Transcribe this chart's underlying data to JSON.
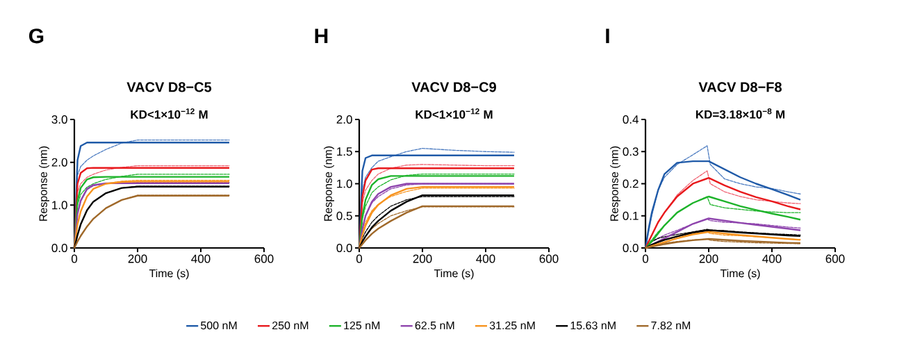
{
  "chart_data": [
    {
      "type": "line",
      "title": "VACV D8−C5",
      "subtitle": "**KD<1×10$^{−12}$ M**",
      "xlabel": "Time (s)",
      "ylabel": "Response (nm)",
      "annotations": [
        "G"
      ],
      "xlim": [
        0,
        600
      ],
      "xticks": [
        0,
        200,
        400,
        600
      ],
      "ylim": [
        0,
        3
      ],
      "yticks": [
        {
          "value": 0,
          "label": "0.0"
        },
        {
          "value": 1,
          "label": "1.0"
        },
        {
          "value": 2,
          "label": "2.0"
        },
        {
          "value": 3,
          "label": "3.0"
        }
      ],
      "series": [
        {
          "color": "#4a7ac0",
          "line_style": "dashed",
          "x": [
            0,
            10,
            20,
            40,
            60,
            100,
            150,
            200,
            300,
            400,
            490
          ],
          "values": [
            0,
            1.7,
            1.9,
            2.05,
            2.15,
            2.3,
            2.45,
            2.52,
            2.52,
            2.52,
            2.52
          ]
        },
        {
          "color": "#f06070",
          "line_style": "dashed",
          "x": [
            0,
            10,
            20,
            40,
            60,
            100,
            150,
            200,
            300,
            400,
            490
          ],
          "values": [
            0,
            1.3,
            1.5,
            1.65,
            1.72,
            1.82,
            1.88,
            1.92,
            1.92,
            1.92,
            1.92
          ]
        },
        {
          "color": "#1db32a",
          "line_style": "dashed",
          "x": [
            0,
            10,
            20,
            40,
            60,
            100,
            150,
            200,
            300,
            400,
            490
          ],
          "values": [
            0,
            1.0,
            1.25,
            1.42,
            1.5,
            1.6,
            1.67,
            1.72,
            1.72,
            1.72,
            1.72
          ]
        },
        {
          "color": "#8e44ad",
          "line_style": "dashed",
          "x": [
            0,
            10,
            20,
            40,
            60,
            100,
            150,
            200,
            300,
            400,
            490
          ],
          "values": [
            0,
            0.8,
            1.1,
            1.36,
            1.45,
            1.5,
            1.52,
            1.53,
            1.53,
            1.53,
            1.53
          ]
        },
        {
          "color": "#f7931e",
          "line_style": "dashed",
          "x": [
            0,
            10,
            20,
            40,
            60,
            100,
            150,
            200,
            300,
            400,
            490
          ],
          "values": [
            0,
            0.55,
            0.85,
            1.2,
            1.38,
            1.5,
            1.56,
            1.58,
            1.58,
            1.58,
            1.58
          ]
        },
        {
          "color": "#000000",
          "line_style": "dashed",
          "x": [
            0,
            10,
            20,
            40,
            60,
            100,
            150,
            200,
            300,
            400,
            490
          ],
          "values": [
            0,
            0.3,
            0.55,
            0.88,
            1.08,
            1.28,
            1.4,
            1.44,
            1.44,
            1.44,
            1.44
          ]
        },
        {
          "color": "#a0692a",
          "line_style": "dashed",
          "x": [
            0,
            10,
            20,
            40,
            60,
            100,
            150,
            200,
            300,
            400,
            490
          ],
          "values": [
            0,
            0.15,
            0.28,
            0.5,
            0.68,
            0.93,
            1.12,
            1.23,
            1.23,
            1.23,
            1.23
          ]
        },
        {
          "color": "#1f5aa8",
          "line_style": "solid",
          "x": [
            0,
            10,
            20,
            40,
            60,
            100,
            150,
            200,
            300,
            400,
            490
          ],
          "values": [
            0,
            2.05,
            2.38,
            2.46,
            2.46,
            2.46,
            2.46,
            2.46,
            2.46,
            2.46,
            2.46
          ]
        },
        {
          "color": "#e8191c",
          "line_style": "solid",
          "x": [
            0,
            10,
            20,
            40,
            60,
            100,
            150,
            200,
            300,
            400,
            490
          ],
          "values": [
            0,
            1.5,
            1.75,
            1.86,
            1.87,
            1.87,
            1.87,
            1.87,
            1.87,
            1.87,
            1.87
          ]
        },
        {
          "color": "#1db32a",
          "line_style": "solid",
          "x": [
            0,
            10,
            20,
            40,
            60,
            100,
            150,
            200,
            300,
            400,
            490
          ],
          "values": [
            0,
            1.1,
            1.4,
            1.6,
            1.65,
            1.66,
            1.66,
            1.66,
            1.66,
            1.66,
            1.66
          ]
        },
        {
          "color": "#8e44ad",
          "line_style": "solid",
          "x": [
            0,
            10,
            20,
            40,
            60,
            100,
            150,
            200,
            300,
            400,
            490
          ],
          "values": [
            0,
            0.8,
            1.1,
            1.38,
            1.47,
            1.51,
            1.51,
            1.51,
            1.51,
            1.51,
            1.51
          ]
        },
        {
          "color": "#f7931e",
          "line_style": "solid",
          "x": [
            0,
            10,
            20,
            40,
            60,
            100,
            150,
            200,
            300,
            400,
            490
          ],
          "values": [
            0,
            0.55,
            0.85,
            1.2,
            1.38,
            1.5,
            1.54,
            1.55,
            1.55,
            1.55,
            1.55
          ]
        },
        {
          "color": "#000000",
          "line_style": "solid",
          "x": [
            0,
            10,
            20,
            40,
            60,
            100,
            150,
            200,
            300,
            400,
            490
          ],
          "values": [
            0,
            0.3,
            0.55,
            0.88,
            1.08,
            1.28,
            1.4,
            1.43,
            1.43,
            1.43,
            1.43
          ]
        },
        {
          "color": "#a0692a",
          "line_style": "solid",
          "x": [
            0,
            10,
            20,
            40,
            60,
            100,
            150,
            200,
            300,
            400,
            490
          ],
          "values": [
            0,
            0.15,
            0.28,
            0.5,
            0.68,
            0.93,
            1.12,
            1.22,
            1.22,
            1.22,
            1.22
          ]
        }
      ]
    },
    {
      "type": "line",
      "title": "VACV D8−C9",
      "subtitle": "**KD<1×10$^{−12}$ M**",
      "xlabel": "Time (s)",
      "ylabel": "Response (nm)",
      "annotations": [
        "H"
      ],
      "legend": "bottom",
      "xlim": [
        0,
        600
      ],
      "xticks": [
        0,
        200,
        400,
        600
      ],
      "ylim": [
        0,
        2
      ],
      "yticks": [
        {
          "value": 0,
          "label": "0.0"
        },
        {
          "value": 0.5,
          "label": "0.5"
        },
        {
          "value": 1,
          "label": "1.0"
        },
        {
          "value": 1.5,
          "label": "1.5"
        },
        {
          "value": 2,
          "label": "2.0"
        }
      ],
      "series": [
        {
          "color": "#4a7ac0",
          "line_style": "dashed",
          "x": [
            0,
            10,
            20,
            40,
            60,
            100,
            150,
            200,
            300,
            400,
            490
          ],
          "values": [
            0,
            0.9,
            1.1,
            1.25,
            1.35,
            1.42,
            1.5,
            1.55,
            1.52,
            1.5,
            1.49
          ]
        },
        {
          "color": "#f06070",
          "line_style": "dashed",
          "x": [
            0,
            10,
            20,
            40,
            60,
            100,
            150,
            200,
            300,
            400,
            490
          ],
          "values": [
            0,
            0.7,
            0.9,
            1.05,
            1.15,
            1.24,
            1.29,
            1.3,
            1.29,
            1.28,
            1.28
          ]
        },
        {
          "color": "#1db32a",
          "line_style": "dashed",
          "x": [
            0,
            10,
            20,
            40,
            60,
            100,
            150,
            200,
            300,
            400,
            490
          ],
          "values": [
            0,
            0.45,
            0.65,
            0.86,
            0.95,
            1.06,
            1.13,
            1.15,
            1.15,
            1.15,
            1.15
          ]
        },
        {
          "color": "#8e44ad",
          "line_style": "dashed",
          "x": [
            0,
            10,
            20,
            40,
            60,
            100,
            150,
            200,
            300,
            400,
            490
          ],
          "values": [
            0,
            0.3,
            0.5,
            0.7,
            0.8,
            0.92,
            0.98,
            1.0,
            1.0,
            1.0,
            1.0
          ]
        },
        {
          "color": "#f7931e",
          "line_style": "dashed",
          "x": [
            0,
            10,
            20,
            40,
            60,
            100,
            150,
            200,
            300,
            400,
            490
          ],
          "values": [
            0,
            0.25,
            0.4,
            0.58,
            0.68,
            0.8,
            0.88,
            0.93,
            0.93,
            0.93,
            0.93
          ]
        },
        {
          "color": "#000000",
          "line_style": "dashed",
          "x": [
            0,
            10,
            20,
            40,
            60,
            100,
            150,
            200,
            300,
            400,
            490
          ],
          "values": [
            0,
            0.15,
            0.25,
            0.4,
            0.5,
            0.65,
            0.75,
            0.8,
            0.8,
            0.8,
            0.8
          ]
        },
        {
          "color": "#a0692a",
          "line_style": "dashed",
          "x": [
            0,
            10,
            20,
            40,
            60,
            100,
            150,
            200,
            300,
            400,
            490
          ],
          "values": [
            0,
            0.1,
            0.18,
            0.3,
            0.38,
            0.5,
            0.58,
            0.64,
            0.64,
            0.64,
            0.64
          ]
        },
        {
          "name": "500 nM",
          "color": "#1f5aa8",
          "line_style": "solid",
          "x": [
            0,
            10,
            20,
            40,
            60,
            100,
            150,
            200,
            300,
            400,
            490
          ],
          "values": [
            0,
            1.2,
            1.4,
            1.44,
            1.44,
            1.44,
            1.44,
            1.44,
            1.44,
            1.44,
            1.44
          ]
        },
        {
          "name": "250 nM",
          "color": "#e8191c",
          "line_style": "solid",
          "x": [
            0,
            10,
            20,
            40,
            60,
            100,
            150,
            200,
            300,
            400,
            490
          ],
          "values": [
            0,
            0.8,
            1.05,
            1.22,
            1.24,
            1.24,
            1.24,
            1.24,
            1.24,
            1.24,
            1.24
          ]
        },
        {
          "name": "125 nM",
          "color": "#1db32a",
          "line_style": "solid",
          "x": [
            0,
            10,
            20,
            40,
            60,
            100,
            150,
            200,
            300,
            400,
            490
          ],
          "values": [
            0,
            0.5,
            0.75,
            0.98,
            1.07,
            1.12,
            1.12,
            1.12,
            1.12,
            1.12,
            1.12
          ]
        },
        {
          "name": "62.5 nM",
          "color": "#8e44ad",
          "line_style": "solid",
          "x": [
            0,
            10,
            20,
            40,
            60,
            100,
            150,
            200,
            300,
            400,
            490
          ],
          "values": [
            0,
            0.3,
            0.5,
            0.72,
            0.84,
            0.95,
            1.0,
            1.0,
            1.0,
            1.0,
            1.0
          ]
        },
        {
          "name": "31.25 nM",
          "color": "#f7931e",
          "line_style": "solid",
          "x": [
            0,
            10,
            20,
            40,
            60,
            100,
            150,
            200,
            300,
            400,
            490
          ],
          "values": [
            0,
            0.2,
            0.35,
            0.55,
            0.67,
            0.82,
            0.92,
            0.95,
            0.95,
            0.95,
            0.95
          ]
        },
        {
          "name": "15.63 nM",
          "color": "#000000",
          "line_style": "solid",
          "x": [
            0,
            10,
            20,
            40,
            60,
            100,
            150,
            200,
            300,
            400,
            490
          ],
          "values": [
            0,
            0.1,
            0.18,
            0.32,
            0.42,
            0.58,
            0.72,
            0.82,
            0.82,
            0.82,
            0.82
          ]
        },
        {
          "name": "7.82 nM",
          "color": "#a0692a",
          "line_style": "solid",
          "x": [
            0,
            10,
            20,
            40,
            60,
            100,
            150,
            200,
            300,
            400,
            490
          ],
          "values": [
            0,
            0.06,
            0.12,
            0.22,
            0.3,
            0.42,
            0.55,
            0.65,
            0.65,
            0.65,
            0.65
          ]
        }
      ]
    },
    {
      "type": "line",
      "title": "VACV D8−F8",
      "subtitle": "**KD=3.18×10$^{−8}$ M**",
      "xlabel": "Time (s)",
      "ylabel": "Response (nm)",
      "annotations": [
        "I"
      ],
      "xlim": [
        0,
        600
      ],
      "xticks": [
        0,
        200,
        400,
        600
      ],
      "ylim": [
        0,
        0.4
      ],
      "yticks": [
        {
          "value": 0,
          "label": "0.0"
        },
        {
          "value": 0.1,
          "label": "0.1"
        },
        {
          "value": 0.2,
          "label": "0.2"
        },
        {
          "value": 0.3,
          "label": "0.3"
        },
        {
          "value": 0.4,
          "label": "0.4"
        }
      ],
      "series": [
        {
          "color": "#4a7ac0",
          "line_style": "dashed",
          "x": [
            0,
            10,
            20,
            40,
            60,
            100,
            150,
            195,
            205,
            250,
            300,
            350,
            400,
            450,
            490
          ],
          "values": [
            0,
            0.05,
            0.1,
            0.18,
            0.22,
            0.26,
            0.29,
            0.318,
            0.26,
            0.215,
            0.2,
            0.19,
            0.185,
            0.175,
            0.168
          ]
        },
        {
          "color": "#f06070",
          "line_style": "dashed",
          "x": [
            0,
            10,
            20,
            40,
            60,
            100,
            150,
            195,
            205,
            250,
            300,
            350,
            400,
            450,
            490
          ],
          "values": [
            0,
            0.02,
            0.04,
            0.08,
            0.11,
            0.165,
            0.21,
            0.24,
            0.2,
            0.175,
            0.16,
            0.15,
            0.145,
            0.14,
            0.138
          ]
        },
        {
          "color": "#1db32a",
          "line_style": "dashed",
          "x": [
            0,
            10,
            20,
            40,
            60,
            100,
            150,
            195,
            205,
            250,
            300,
            350,
            400,
            450,
            490
          ],
          "values": [
            0,
            0.015,
            0.025,
            0.05,
            0.07,
            0.11,
            0.14,
            0.16,
            0.135,
            0.125,
            0.12,
            0.115,
            0.112,
            0.11,
            0.11
          ]
        },
        {
          "color": "#8e44ad",
          "line_style": "dashed",
          "x": [
            0,
            10,
            20,
            40,
            60,
            100,
            150,
            195,
            205,
            250,
            300,
            350,
            400,
            450,
            490
          ],
          "values": [
            0,
            0.01,
            0.02,
            0.03,
            0.04,
            0.055,
            0.075,
            0.09,
            0.085,
            0.08,
            0.078,
            0.075,
            0.07,
            0.065,
            0.062
          ]
        },
        {
          "color": "#f7931e",
          "line_style": "dashed",
          "x": [
            0,
            10,
            20,
            40,
            60,
            100,
            150,
            195,
            205,
            250,
            300,
            350,
            400,
            450,
            490
          ],
          "values": [
            0,
            0.005,
            0.01,
            0.018,
            0.025,
            0.035,
            0.045,
            0.05,
            0.045,
            0.04,
            0.038,
            0.035,
            0.032,
            0.028,
            0.026
          ]
        },
        {
          "color": "#000000",
          "line_style": "dashed",
          "x": [
            0,
            10,
            20,
            40,
            60,
            100,
            150,
            195,
            205,
            250,
            300,
            350,
            400,
            450,
            490
          ],
          "values": [
            0,
            0.01,
            0.02,
            0.03,
            0.035,
            0.042,
            0.05,
            0.058,
            0.056,
            0.054,
            0.05,
            0.047,
            0.044,
            0.042,
            0.04
          ]
        },
        {
          "color": "#a0692a",
          "line_style": "dashed",
          "x": [
            0,
            10,
            20,
            40,
            60,
            100,
            150,
            195,
            205,
            250,
            300,
            350,
            400,
            450,
            490
          ],
          "values": [
            0,
            0.005,
            0.008,
            0.012,
            0.015,
            0.02,
            0.025,
            0.028,
            0.024,
            0.02,
            0.018,
            0.016,
            0.015,
            0.014,
            0.013
          ]
        },
        {
          "color": "#1f5aa8",
          "line_style": "solid",
          "x": [
            0,
            10,
            20,
            40,
            60,
            100,
            150,
            200,
            250,
            300,
            350,
            400,
            450,
            490
          ],
          "values": [
            0,
            0.06,
            0.11,
            0.18,
            0.23,
            0.265,
            0.27,
            0.27,
            0.245,
            0.22,
            0.2,
            0.183,
            0.165,
            0.15
          ]
        },
        {
          "color": "#e8191c",
          "line_style": "solid",
          "x": [
            0,
            10,
            20,
            40,
            60,
            100,
            150,
            200,
            250,
            300,
            350,
            400,
            450,
            490
          ],
          "values": [
            0,
            0.02,
            0.04,
            0.08,
            0.11,
            0.16,
            0.2,
            0.218,
            0.195,
            0.175,
            0.158,
            0.145,
            0.13,
            0.12
          ]
        },
        {
          "color": "#1db32a",
          "line_style": "solid",
          "x": [
            0,
            10,
            20,
            40,
            60,
            100,
            150,
            200,
            250,
            300,
            350,
            400,
            450,
            490
          ],
          "values": [
            0,
            0.01,
            0.02,
            0.045,
            0.07,
            0.11,
            0.14,
            0.16,
            0.145,
            0.13,
            0.118,
            0.107,
            0.097,
            0.088
          ]
        },
        {
          "color": "#8e44ad",
          "line_style": "solid",
          "x": [
            0,
            10,
            20,
            40,
            60,
            100,
            150,
            200,
            250,
            300,
            350,
            400,
            450,
            490
          ],
          "values": [
            0,
            0.005,
            0.01,
            0.02,
            0.03,
            0.05,
            0.075,
            0.092,
            0.085,
            0.078,
            0.072,
            0.066,
            0.06,
            0.055
          ]
        },
        {
          "color": "#000000",
          "line_style": "solid",
          "x": [
            0,
            10,
            20,
            40,
            60,
            100,
            150,
            200,
            250,
            300,
            350,
            400,
            450,
            490
          ],
          "values": [
            0,
            0.005,
            0.01,
            0.018,
            0.025,
            0.036,
            0.048,
            0.055,
            0.052,
            0.048,
            0.045,
            0.042,
            0.039,
            0.037
          ]
        },
        {
          "color": "#f7931e",
          "line_style": "solid",
          "x": [
            0,
            10,
            20,
            40,
            60,
            100,
            150,
            200,
            250,
            300,
            350,
            400,
            450,
            490
          ],
          "values": [
            0,
            0.003,
            0.006,
            0.012,
            0.018,
            0.03,
            0.042,
            0.05,
            0.045,
            0.04,
            0.036,
            0.032,
            0.028,
            0.025
          ]
        },
        {
          "color": "#a0692a",
          "line_style": "solid",
          "x": [
            0,
            10,
            20,
            40,
            60,
            100,
            150,
            200,
            250,
            300,
            350,
            400,
            450,
            490
          ],
          "values": [
            0,
            0.002,
            0.004,
            0.008,
            0.012,
            0.018,
            0.024,
            0.028,
            0.025,
            0.022,
            0.02,
            0.018,
            0.016,
            0.015
          ]
        }
      ]
    }
  ]
}
